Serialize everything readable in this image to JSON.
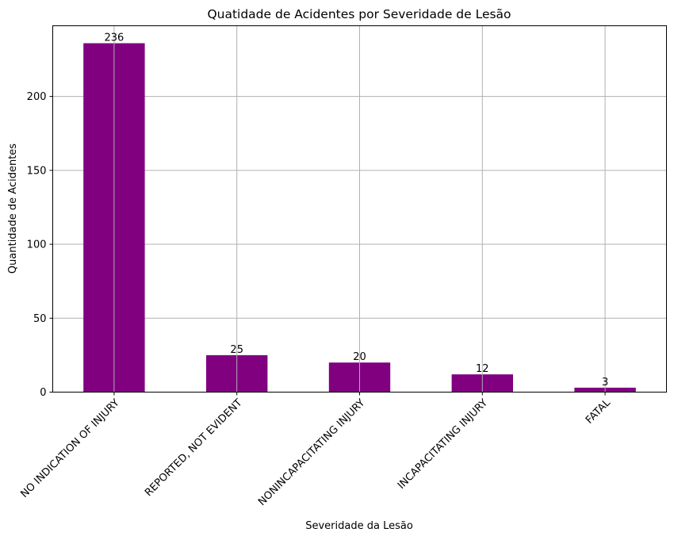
{
  "chart_data": {
    "type": "bar",
    "title": "Quatidade de Acidentes por Severidade de Lesão",
    "xlabel": "Severidade da Lesão",
    "ylabel": "Quantidade de Acidentes",
    "categories": [
      "NO INDICATION OF INJURY",
      "REPORTED, NOT EVIDENT",
      "NONINCAPACITATING INJURY",
      "INCAPACITATING INJURY",
      "FATAL"
    ],
    "values": [
      236,
      25,
      20,
      12,
      3
    ],
    "data_labels": [
      "236",
      "25",
      "20",
      "12",
      "3"
    ],
    "ylim": [
      0,
      247.8
    ],
    "yticks": [
      0,
      50,
      100,
      150,
      200
    ],
    "ytick_labels": [
      "0",
      "50",
      "100",
      "150",
      "200"
    ],
    "grid": true,
    "bar_color": "#800080",
    "grid_color": "#b0b0b0"
  }
}
